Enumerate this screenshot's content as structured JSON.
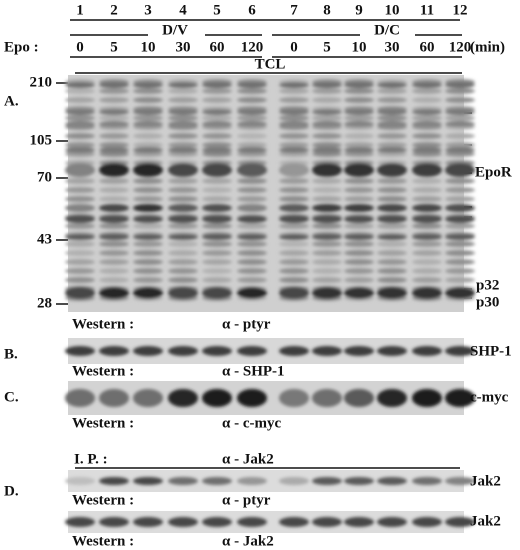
{
  "lanes": [
    "1",
    "2",
    "3",
    "4",
    "5",
    "6",
    "7",
    "8",
    "9",
    "10",
    "11",
    "12"
  ],
  "groups": [
    "D/V",
    "D/C"
  ],
  "epo_label": "Epo :",
  "time_points": [
    [
      "0",
      "5",
      "10",
      "30",
      "60",
      "120"
    ],
    [
      "0",
      "5",
      "10",
      "30",
      "60",
      "120"
    ]
  ],
  "time_unit": "(min)",
  "tcl_label": "TCL",
  "panels": {
    "A": {
      "label": "A.",
      "markers": [
        "210",
        "105",
        "70",
        "43",
        "28"
      ],
      "annotations": [
        "EpoR",
        "p32",
        "p30"
      ],
      "western": "Western :",
      "antibody": "α - ptyr"
    },
    "B": {
      "label": "B.",
      "band": "SHP-1",
      "western": "Western :",
      "antibody": "α - SHP-1"
    },
    "C": {
      "label": "C.",
      "band": "c-myc",
      "western": "Western :",
      "antibody": "α - c-myc"
    },
    "D": {
      "label": "D.",
      "ip": "I. P. :",
      "ip_antibody": "α - Jak2",
      "blots": [
        {
          "band": "Jak2",
          "western": "Western :",
          "antibody": "α - ptyr"
        },
        {
          "band": "Jak2",
          "western": "Western :",
          "antibody": "α - Jak2"
        }
      ]
    }
  }
}
